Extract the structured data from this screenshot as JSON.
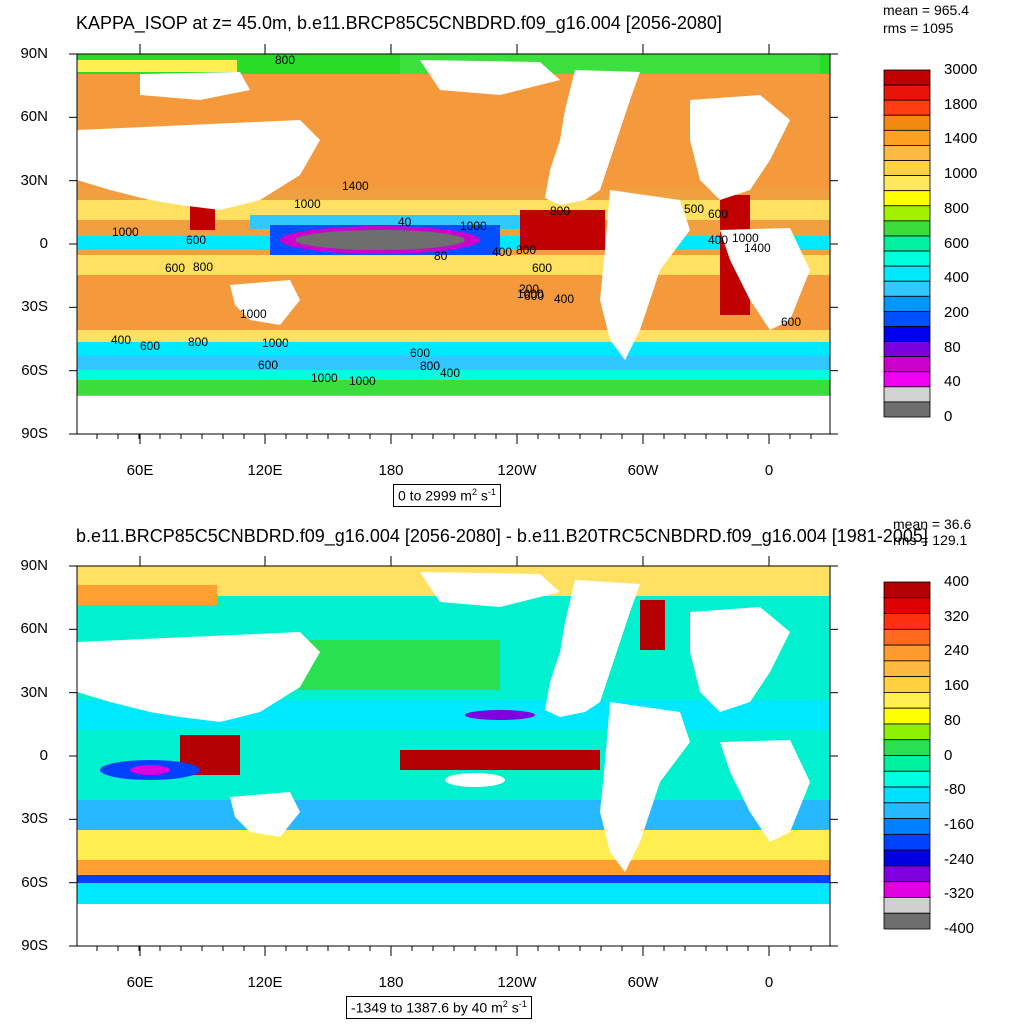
{
  "panels": [
    {
      "title": "KAPPA_ISOP at z=  45.0m, b.e11.BRCP85C5CNBDRD.f09_g16.004 [2056-2080]",
      "mean_text": "mean = 965.4",
      "rms_text": "rms = 1095",
      "range_text": "0 to 2999",
      "units_text": "m",
      "units_exp1": "2",
      "units_s": "s",
      "units_exp2": "-1",
      "colorbar_labels": [
        "3000",
        "1800",
        "1400",
        "1000",
        "800",
        "600",
        "400",
        "200",
        "80",
        "40",
        "0"
      ],
      "colorbar_colors": [
        "#c00000",
        "#e8140a",
        "#ff3c14",
        "#f08a10",
        "#ffa020",
        "#ffb840",
        "#ffd040",
        "#ffe85a",
        "#ffff00",
        "#a0f000",
        "#3cdc3c",
        "#00f0a0",
        "#00ffdc",
        "#00e8ff",
        "#30c8ff",
        "#0096ff",
        "#0050ff",
        "#0000f0",
        "#7a00e0",
        "#cc00cc",
        "#f000f0",
        "#d2d2d2",
        "#6e6e6e"
      ],
      "contour_labels": [
        "800",
        "1400",
        "1000",
        "40",
        "80",
        "600",
        "800",
        "1000",
        "400",
        "600",
        "800",
        "1000",
        "1000",
        "600",
        "400",
        "800",
        "1000",
        "600",
        "1000",
        "800",
        "600",
        "400",
        "200",
        "400",
        "600",
        "1000",
        "800",
        "600",
        "400",
        "600",
        "1000",
        "1400",
        "500",
        "1000",
        "600"
      ]
    },
    {
      "title": "b.e11.BRCP85C5CNBDRD.f09_g16.004 [2056-2080] - b.e11.B20TRC5CNBDRD.f09_g16.004 [1981-2005]",
      "mean_text": "mean = 36.6",
      "rms_text": "rms = 129.1",
      "range_text": "-1349 to 1387.6 by 40",
      "units_text": "m",
      "units_exp1": "2",
      "units_s": "s",
      "units_exp2": "-1",
      "colorbar_labels": [
        "400",
        "320",
        "240",
        "160",
        "80",
        "0",
        "-80",
        "-160",
        "-240",
        "-320",
        "-400"
      ],
      "colorbar_colors": [
        "#b40000",
        "#e00000",
        "#ff3010",
        "#ff6a20",
        "#ff9a30",
        "#ffb840",
        "#ffd040",
        "#ffee50",
        "#ffff00",
        "#8cf000",
        "#28e050",
        "#00f0a0",
        "#00ffe0",
        "#00e0ff",
        "#28b8ff",
        "#0080ff",
        "#0040ff",
        "#0000e0",
        "#8000e0",
        "#e000e0",
        "#d0d0d0",
        "#6e6e6e"
      ]
    }
  ],
  "lat_labels": [
    "90N",
    "60N",
    "30N",
    "0",
    "30S",
    "60S",
    "90S"
  ],
  "lon_labels": [
    "60E",
    "120E",
    "180",
    "120W",
    "60W",
    "0"
  ]
}
